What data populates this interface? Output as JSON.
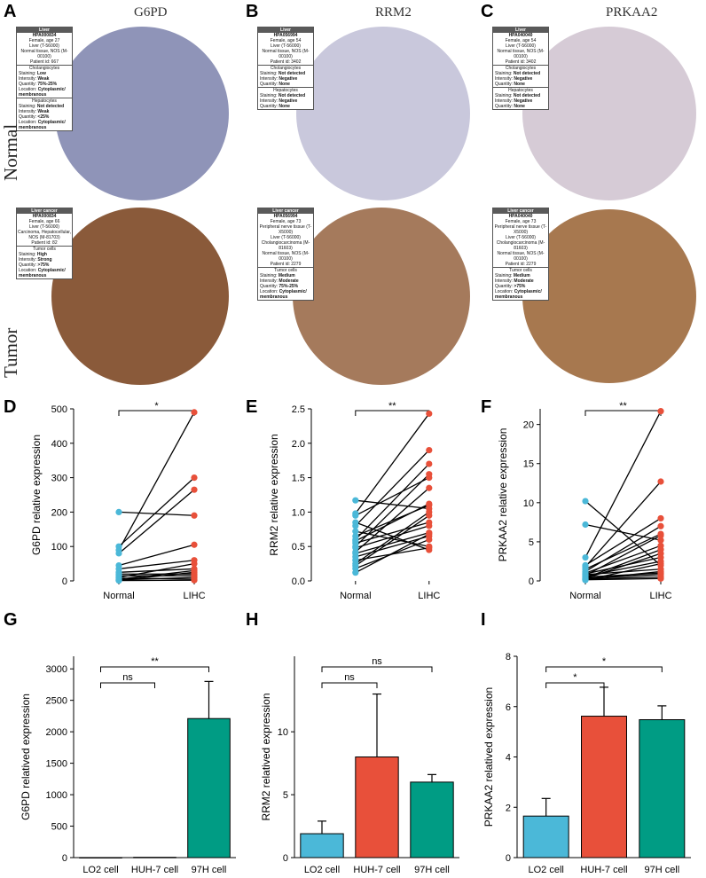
{
  "panel_labels": [
    "A",
    "B",
    "C",
    "D",
    "E",
    "F",
    "G",
    "H",
    "I"
  ],
  "ihc": {
    "row_labels": [
      "Normal",
      "Tumor"
    ],
    "panels": [
      {
        "gene": "G6PD",
        "normal_color": "#8f94b8",
        "tumor_color": "#8a5a3a",
        "normal_card": {
          "header": "Liver",
          "antibody": "HPA000834",
          "lines": [
            "Female, age 27",
            "Liver (T-56000)",
            "Normal tissue, NOS (M-00100)",
            "Patient id: 667"
          ],
          "cells": [
            {
              "name": "Cholangiocytes",
              "rows": [
                [
                  "Staining:",
                  "Low"
                ],
                [
                  "Intensity:",
                  "Weak"
                ],
                [
                  "Quantity:",
                  "75%-25%"
                ],
                [
                  "Location:",
                  "Cytoplasmic/ membranous"
                ]
              ]
            },
            {
              "name": "Hepatocytes",
              "rows": [
                [
                  "Staining:",
                  "Not detected"
                ],
                [
                  "Intensity:",
                  "Weak"
                ],
                [
                  "Quantity:",
                  "<25%"
                ],
                [
                  "Location:",
                  "Cytoplasmic/ membranous"
                ]
              ]
            }
          ]
        },
        "tumor_card": {
          "header": "Liver cancer",
          "antibody": "HPA000834",
          "lines": [
            "Female, age 66",
            "Liver (T-56000)",
            "Carcinoma, Hepatocellular, NOS (M-81703)",
            "Patient id: 82"
          ],
          "cells": [
            {
              "name": "Tumor cells",
              "rows": [
                [
                  "Staining:",
                  "High"
                ],
                [
                  "Intensity:",
                  "Strong"
                ],
                [
                  "Quantity:",
                  ">75%"
                ],
                [
                  "Location:",
                  "Cytoplasmic/ membranous"
                ]
              ]
            }
          ]
        }
      },
      {
        "gene": "RRM2",
        "normal_color": "#c9c8dc",
        "tumor_color": "#a57a5c",
        "normal_card": {
          "header": "Liver",
          "antibody": "HPA056994",
          "lines": [
            "Female, age 54",
            "Liver (T-56000)",
            "Normal tissue, NOS (M-00100)",
            "Patient id: 3402"
          ],
          "cells": [
            {
              "name": "Cholangiocytes",
              "rows": [
                [
                  "Staining:",
                  "Not detected"
                ],
                [
                  "Intensity:",
                  "Negative"
                ],
                [
                  "Quantity:",
                  "None"
                ]
              ]
            },
            {
              "name": "Hepatocytes",
              "rows": [
                [
                  "Staining:",
                  "Not detected"
                ],
                [
                  "Intensity:",
                  "Negative"
                ],
                [
                  "Quantity:",
                  "None"
                ]
              ]
            }
          ]
        },
        "tumor_card": {
          "header": "Liver cancer",
          "antibody": "HPA056994",
          "lines": [
            "Female, age 73",
            "Peripheral nerve tissue (T-X5000)",
            "Liver (T-56000)",
            "Cholangiocarcinoma (M-81603)",
            "Normal tissue, NOS (M-00100)",
            "Patient id: 2279"
          ],
          "cells": [
            {
              "name": "Tumor cells",
              "rows": [
                [
                  "Staining:",
                  "Medium"
                ],
                [
                  "Intensity:",
                  "Moderate"
                ],
                [
                  "Quantity:",
                  "75%-25%"
                ],
                [
                  "Location:",
                  "Cytoplasmic/ membranous"
                ]
              ]
            }
          ]
        }
      },
      {
        "gene": "PRKAA2",
        "normal_color": "#d6cbd6",
        "tumor_color": "#a7784f",
        "normal_card": {
          "header": "Liver",
          "antibody": "HPA040040",
          "lines": [
            "Female, age 54",
            "Liver (T-56000)",
            "Normal tissue, NOS (M-00100)",
            "Patient id: 3402"
          ],
          "cells": [
            {
              "name": "Cholangiocytes",
              "rows": [
                [
                  "Staining:",
                  "Not detected"
                ],
                [
                  "Intensity:",
                  "Negative"
                ],
                [
                  "Quantity:",
                  "None"
                ]
              ]
            },
            {
              "name": "Hepatocytes",
              "rows": [
                [
                  "Staining:",
                  "Not detected"
                ],
                [
                  "Intensity:",
                  "Negative"
                ],
                [
                  "Quantity:",
                  "None"
                ]
              ]
            }
          ]
        },
        "tumor_card": {
          "header": "Liver cancer",
          "antibody": "HPA040040",
          "lines": [
            "Female, age 73",
            "Peripheral nerve tissue (T-X5000)",
            "Liver (T-56000)",
            "Cholangiocarcinoma (M-81603)",
            "Normal tissue, NOS (M-00100)",
            "Patient id: 2279"
          ],
          "cells": [
            {
              "name": "Tumor cells",
              "rows": [
                [
                  "Staining:",
                  "Medium"
                ],
                [
                  "Intensity:",
                  "Moderate"
                ],
                [
                  "Quantity:",
                  ">75%"
                ],
                [
                  "Location:",
                  "Cytoplasmic/ membranous"
                ]
              ]
            }
          ]
        }
      }
    ]
  },
  "colors": {
    "normal_point": "#4bb8d8",
    "tumor_point": "#e8503a",
    "lo2_bar": "#4bb8d8",
    "huh7_bar": "#e8503a",
    "h97_bar": "#009c84"
  },
  "chart_data": [
    {
      "panel": "D",
      "type": "scatter",
      "ylabel": "G6PD relative expression",
      "categories": [
        "Normal",
        "LIHC"
      ],
      "ylim": [
        0,
        500
      ],
      "yticks": [
        0,
        100,
        200,
        300,
        400,
        500
      ],
      "significance": "*",
      "pairs": [
        [
          200,
          190
        ],
        [
          100,
          300
        ],
        [
          90,
          490
        ],
        [
          80,
          265
        ],
        [
          45,
          105
        ],
        [
          35,
          60
        ],
        [
          25,
          35
        ],
        [
          20,
          20
        ],
        [
          15,
          15
        ],
        [
          10,
          50
        ],
        [
          8,
          5
        ],
        [
          5,
          30
        ],
        [
          3,
          10
        ],
        [
          2,
          25
        ],
        [
          1,
          2
        ]
      ]
    },
    {
      "panel": "E",
      "type": "scatter",
      "ylabel": "RRM2 relative expression",
      "categories": [
        "Normal",
        "LIHC"
      ],
      "ylim": [
        0,
        2.5
      ],
      "yticks": [
        0.0,
        0.5,
        1.0,
        1.5,
        2.0,
        2.5
      ],
      "significance": "**",
      "pairs": [
        [
          1.17,
          1.05
        ],
        [
          0.98,
          2.43
        ],
        [
          0.95,
          1.5
        ],
        [
          0.85,
          0.45
        ],
        [
          0.8,
          1.9
        ],
        [
          0.72,
          0.5
        ],
        [
          0.65,
          1.1
        ],
        [
          0.6,
          1.7
        ],
        [
          0.58,
          1.12
        ],
        [
          0.55,
          0.85
        ],
        [
          0.5,
          1.55
        ],
        [
          0.48,
          0.8
        ],
        [
          0.42,
          1.35
        ],
        [
          0.4,
          0.7
        ],
        [
          0.35,
          0.65
        ],
        [
          0.3,
          0.48
        ],
        [
          0.25,
          1.0
        ],
        [
          0.22,
          0.95
        ],
        [
          0.18,
          0.6
        ],
        [
          0.12,
          0.68
        ]
      ]
    },
    {
      "panel": "F",
      "type": "scatter",
      "ylabel": "PRKAA2 relative expression",
      "categories": [
        "Normal",
        "LIHC"
      ],
      "ylim": [
        0,
        22
      ],
      "yticks": [
        0,
        5,
        10,
        15,
        20
      ],
      "significance": "**",
      "pairs": [
        [
          10.2,
          2.0
        ],
        [
          7.2,
          5.2
        ],
        [
          3.0,
          21.7
        ],
        [
          2.0,
          8.0
        ],
        [
          1.8,
          12.7
        ],
        [
          1.5,
          6.0
        ],
        [
          1.2,
          7.0
        ],
        [
          1.0,
          4.5
        ],
        [
          0.9,
          3.0
        ],
        [
          0.8,
          1.5
        ],
        [
          0.7,
          5.8
        ],
        [
          0.6,
          2.5
        ],
        [
          0.5,
          1.0
        ],
        [
          0.4,
          4.0
        ],
        [
          0.35,
          0.8
        ],
        [
          0.3,
          3.5
        ],
        [
          0.25,
          0.5
        ],
        [
          0.2,
          1.2
        ],
        [
          0.15,
          0.3
        ],
        [
          0.1,
          2.2
        ]
      ]
    },
    {
      "panel": "G",
      "type": "bar",
      "ylabel": "G6PD relatived expression",
      "categories": [
        "LO2 cell",
        "HUH-7 cell",
        "97H cell"
      ],
      "values": [
        1,
        5,
        2210
      ],
      "errors": [
        0,
        0,
        590
      ],
      "ylim": [
        0,
        3200
      ],
      "yticks": [
        0,
        500,
        1000,
        1500,
        2000,
        2500,
        3000
      ],
      "comparisons": [
        {
          "from": 0,
          "to": 1,
          "label": "ns"
        },
        {
          "from": 0,
          "to": 2,
          "label": "**"
        }
      ]
    },
    {
      "panel": "H",
      "type": "bar",
      "ylabel": "RRM2 relatived expression",
      "categories": [
        "LO2 cell",
        "HUH-7 cell",
        "97H cell"
      ],
      "values": [
        1.9,
        8.0,
        6.0
      ],
      "errors": [
        1.0,
        5.0,
        0.6
      ],
      "ylim": [
        0,
        16
      ],
      "yticks": [
        0,
        5,
        10
      ],
      "comparisons": [
        {
          "from": 0,
          "to": 1,
          "label": "ns"
        },
        {
          "from": 0,
          "to": 2,
          "label": "ns"
        }
      ]
    },
    {
      "panel": "I",
      "type": "bar",
      "ylabel": "PRKAA2 relatived expression",
      "categories": [
        "LO2 cell",
        "HUH-7 cell",
        "97H cell"
      ],
      "values": [
        1.65,
        5.62,
        5.48
      ],
      "errors": [
        0.7,
        1.15,
        0.55
      ],
      "ylim": [
        0,
        8
      ],
      "yticks": [
        0,
        2,
        4,
        6,
        8
      ],
      "comparisons": [
        {
          "from": 0,
          "to": 1,
          "label": "*"
        },
        {
          "from": 0,
          "to": 2,
          "label": "*"
        }
      ]
    }
  ]
}
